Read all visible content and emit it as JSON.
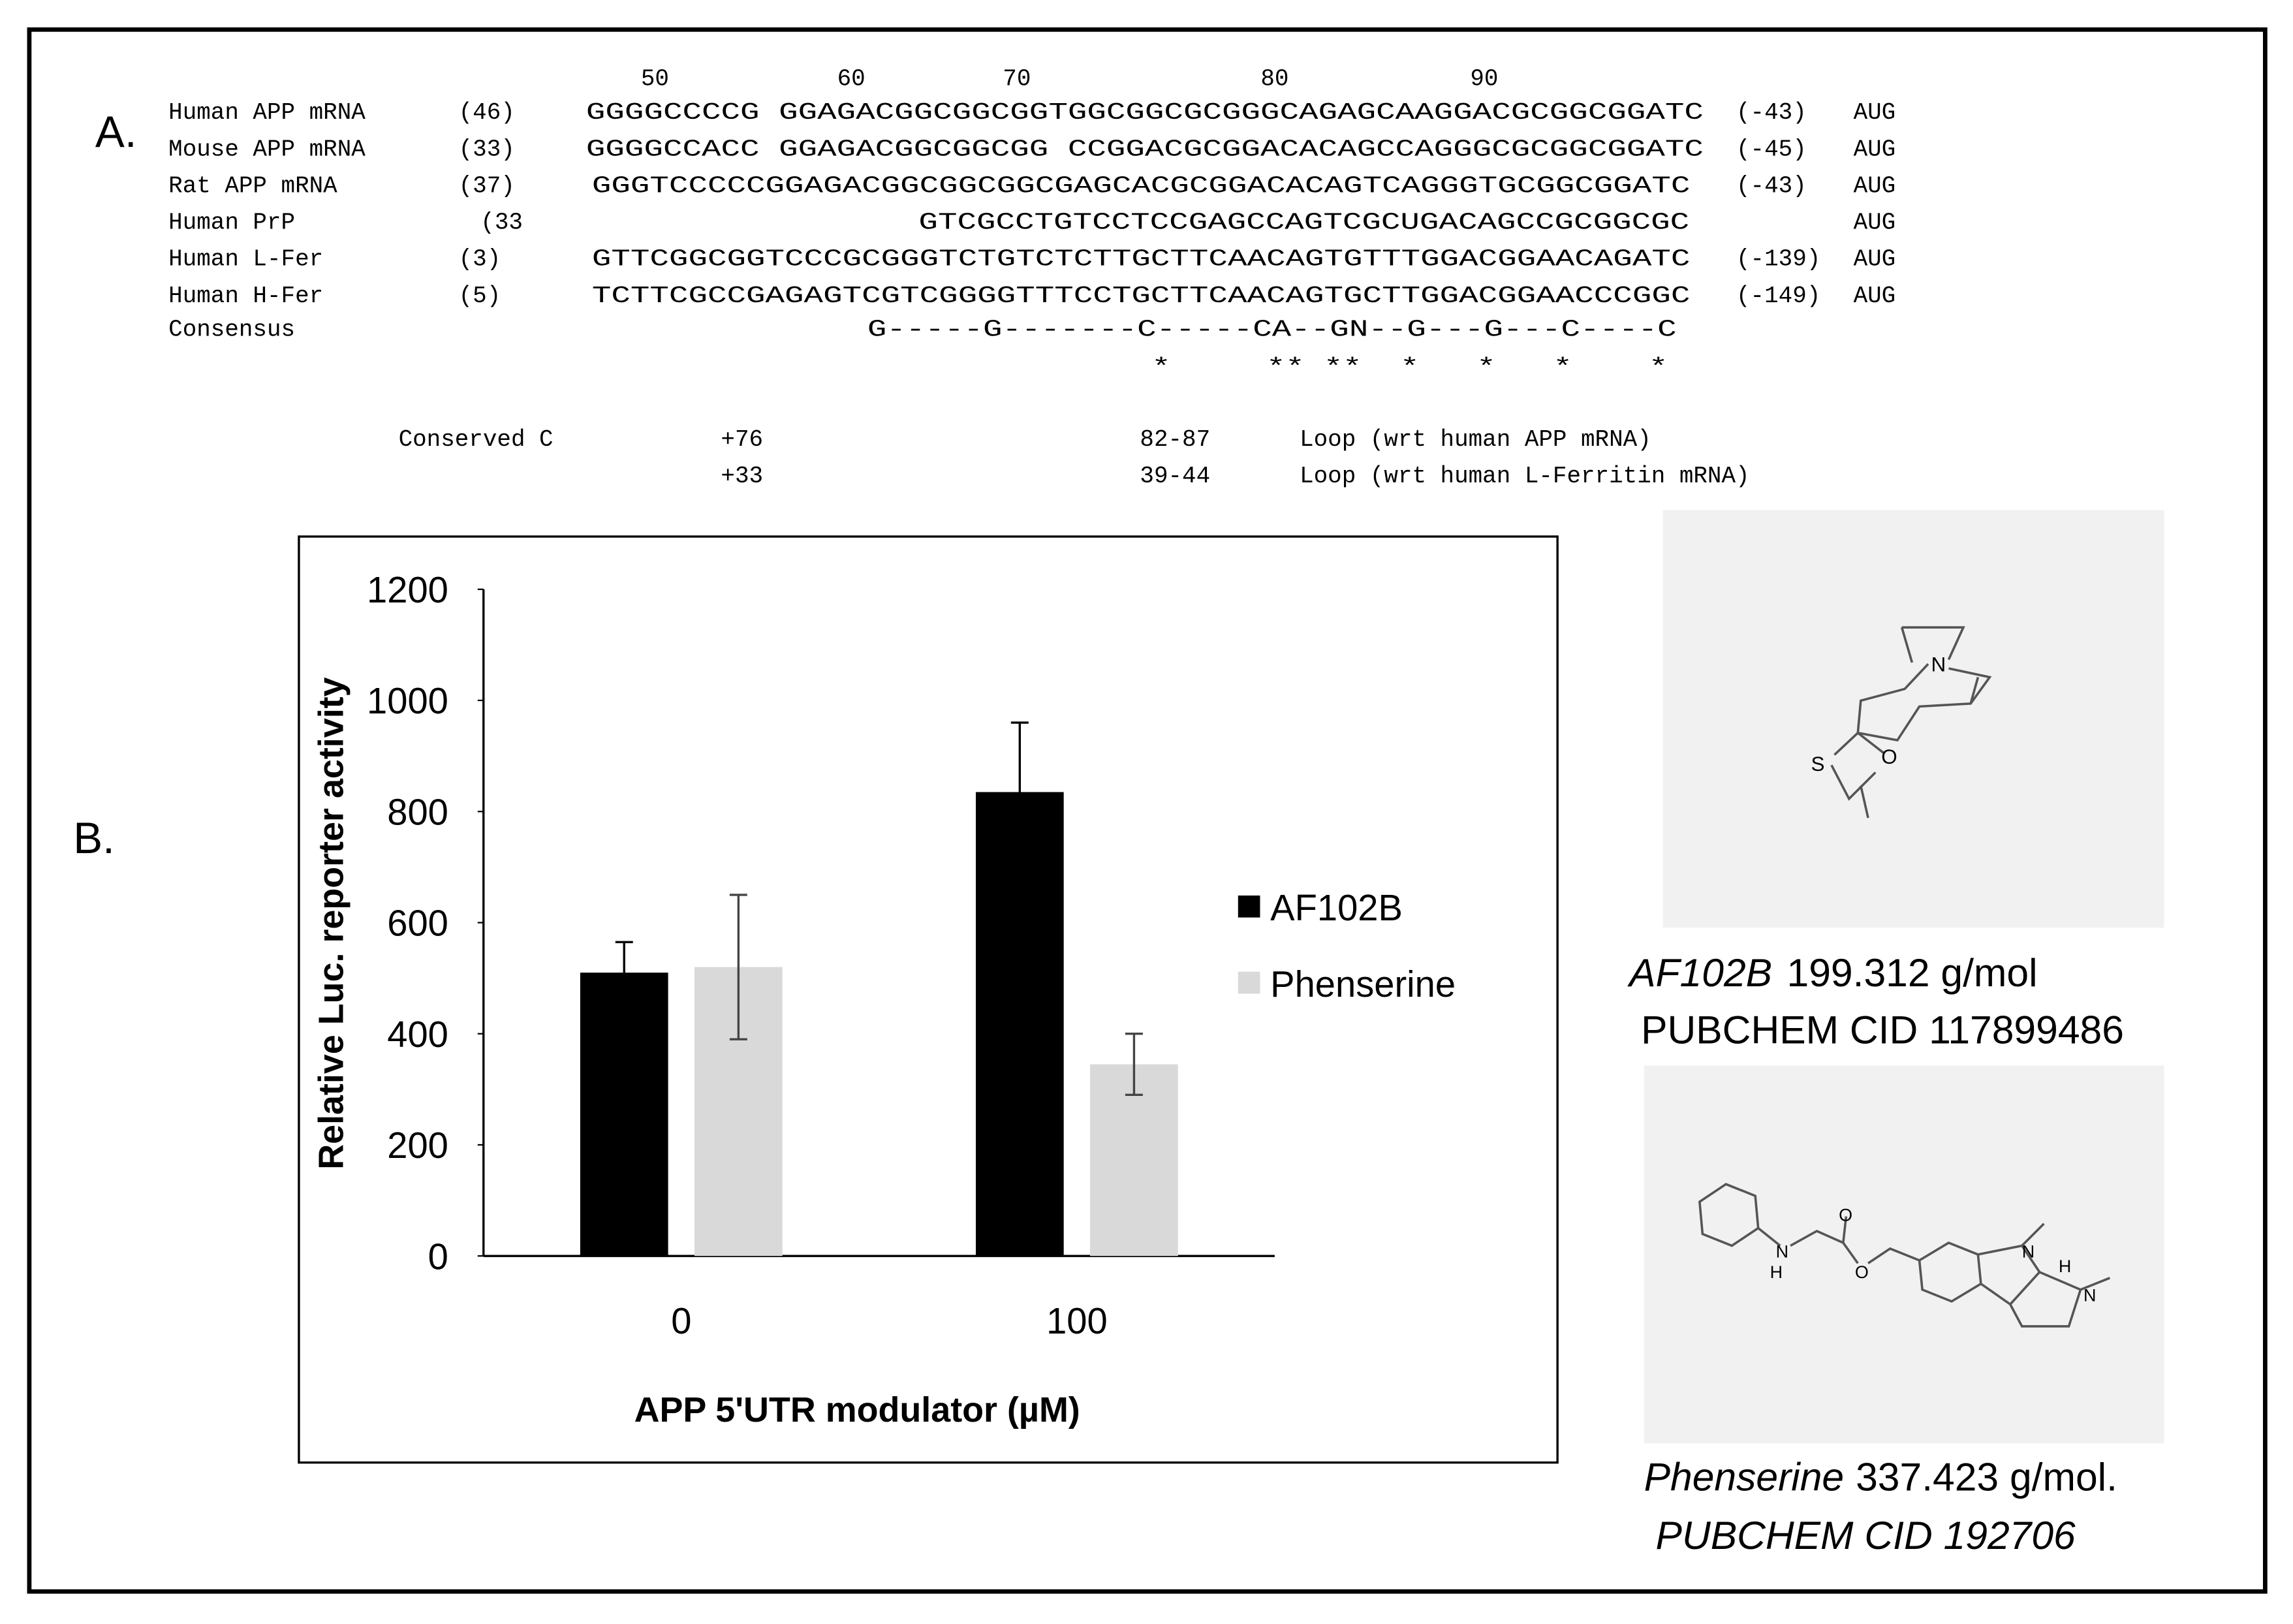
{
  "panel_labels": [
    "A.",
    "B."
  ],
  "alignment": {
    "positions": [
      50,
      60,
      70,
      80,
      90
    ],
    "rows": [
      {
        "name": "Human APP mRNA",
        "start": "(46)",
        "sequence": "GGGGCCCCG GGAGACGGCGGCGGTGGCGGCGCGGGCAGAGCAAGGACGCGGCGGATC",
        "end": "(-43)",
        "cap": "AUG"
      },
      {
        "name": "Mouse APP mRNA",
        "start": "(33)",
        "sequence": "GGGGCCACC GGAGACGGCGGCGG CCGGACGCGGACACAGCCAGGGCGCGGCGGATC",
        "end": "(-45)",
        "cap": "AUG"
      },
      {
        "name": "Rat APP mRNA",
        "start": "(37)",
        "sequence": "GGGTCCCCCGGAGACGGCGGCGGCGAGCACGCGGACACAGTCAGGGTGCGGCGGATC",
        "end": "(-43)",
        "cap": "AUG"
      },
      {
        "name": "Human PrP",
        "start": "(33",
        "sequence": "GTCGCCTGTCCTCCGAGCCAGTCGCUGACAGCCGCGGCGC",
        "cap": "AUG"
      },
      {
        "name": "Human L-Fer",
        "start": "(3)",
        "sequence": "GTTCGGCGGTCCCGCGGGTCTGTCTCTTGCTTCAACAGTGTTTGGACGGAACAGATC",
        "end": "(-139)",
        "cap": "AUG"
      },
      {
        "name": "Human H-Fer",
        "start": "(5)",
        "sequence": "TCTTCGCCGAGAGTCGTCGGGGTTTCCTGCTTCAACAGTGCTTGGACGGAACCCGGC",
        "end": "(-149)",
        "cap": "AUG"
      }
    ],
    "consensus": {
      "name": "Consensus",
      "sequence": "G-----G-------C-----CA--GN--G---G---C----C"
    },
    "stars": "*     ** **  *   *   *    *",
    "notes": [
      {
        "label": "Conserved C",
        "position": "+76",
        "loop": "82-87",
        "text": "Loop (wrt human APP mRNA)"
      },
      {
        "position": "+33",
        "loop": "39-44",
        "text": "Loop (wrt human L-Ferritin mRNA)"
      }
    ]
  },
  "chart_data": {
    "type": "bar",
    "y_label": "Relative Luc.  reporter activity",
    "x_label": "APP 5'UTR  modulator (µM)",
    "categories": [
      "0",
      "100"
    ],
    "series": [
      {
        "name": "AF102B",
        "color": "#000000",
        "values": [
          510,
          835
        ],
        "errors": [
          55,
          125
        ]
      },
      {
        "name": "Phenserine",
        "color": "#d9d9d9",
        "values": [
          520,
          345
        ],
        "errors": [
          130,
          55
        ]
      }
    ],
    "ylim": [
      0,
      1200
    ],
    "yticks": [
      0,
      200,
      400,
      600,
      800,
      1000,
      1200
    ],
    "legend": "right"
  },
  "compounds": [
    {
      "name": "AF102B",
      "mass": "199.312 g/mol",
      "cid": "PUBCHEM CID 117899486",
      "atoms": [
        "N",
        "O",
        "S"
      ]
    },
    {
      "name": "Phenserine",
      "mass": "337.423 g/mol.",
      "cid": "PUBCHEM CID 192706",
      "atoms": [
        "N",
        "H",
        "O",
        "O",
        "N",
        "H",
        "N"
      ]
    }
  ]
}
